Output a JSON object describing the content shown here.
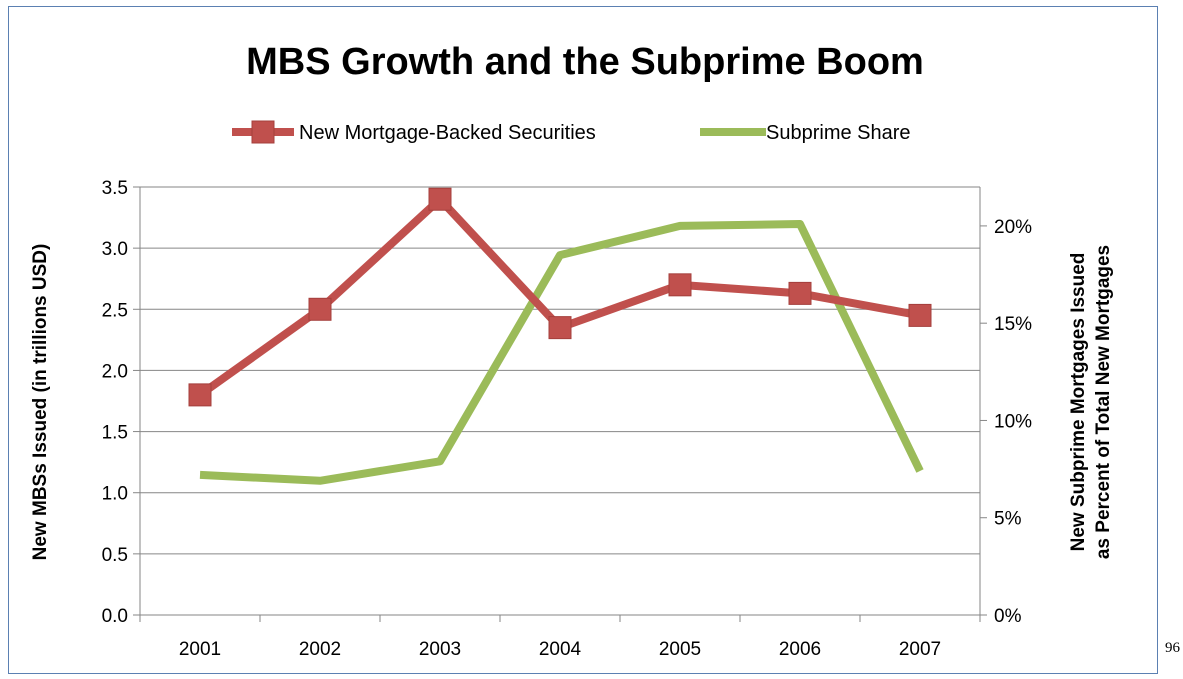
{
  "page": {
    "number_label": "96"
  },
  "colors": {
    "mbs_series": "#c0504d",
    "mbs_marker_border": "#a43f3c",
    "subprime_series": "#9bbb59",
    "gridline": "#868686",
    "axis": "#868686",
    "frame_border": "#5b80b2"
  },
  "chart_data": {
    "type": "line",
    "title": "MBS Growth and the Subprime Boom",
    "xlabel": "",
    "ylabel": "New MBSs Issued (in trillions USD)",
    "y2label_line1": "New Subprime Mortgages Issued",
    "y2label_line2": "as Percent of Total New Mortgages",
    "categories": [
      "2001",
      "2002",
      "2003",
      "2004",
      "2005",
      "2006",
      "2007"
    ],
    "ylim": [
      0,
      3.5
    ],
    "y_ticks": [
      0.0,
      0.5,
      1.0,
      1.5,
      2.0,
      2.5,
      3.0,
      3.5
    ],
    "y_tick_labels": [
      "0.0",
      "0.5",
      "1.0",
      "1.5",
      "2.0",
      "2.5",
      "3.0",
      "3.5"
    ],
    "y2lim": [
      0,
      22
    ],
    "y2_ticks": [
      0,
      5,
      10,
      15,
      20
    ],
    "y2_tick_labels": [
      "0%",
      "5%",
      "10%",
      "15%",
      "20%"
    ],
    "grid": true,
    "legend_position": "top",
    "series": [
      {
        "name": "New Mortgage-Backed Securities",
        "axis": "left",
        "marker": "square",
        "values": [
          1.8,
          2.5,
          3.4,
          2.35,
          2.7,
          2.63,
          2.45
        ]
      },
      {
        "name": "Subprime Share",
        "axis": "right",
        "marker": "none",
        "values": [
          7.2,
          6.9,
          7.9,
          18.5,
          20.0,
          20.1,
          7.4
        ]
      }
    ]
  }
}
